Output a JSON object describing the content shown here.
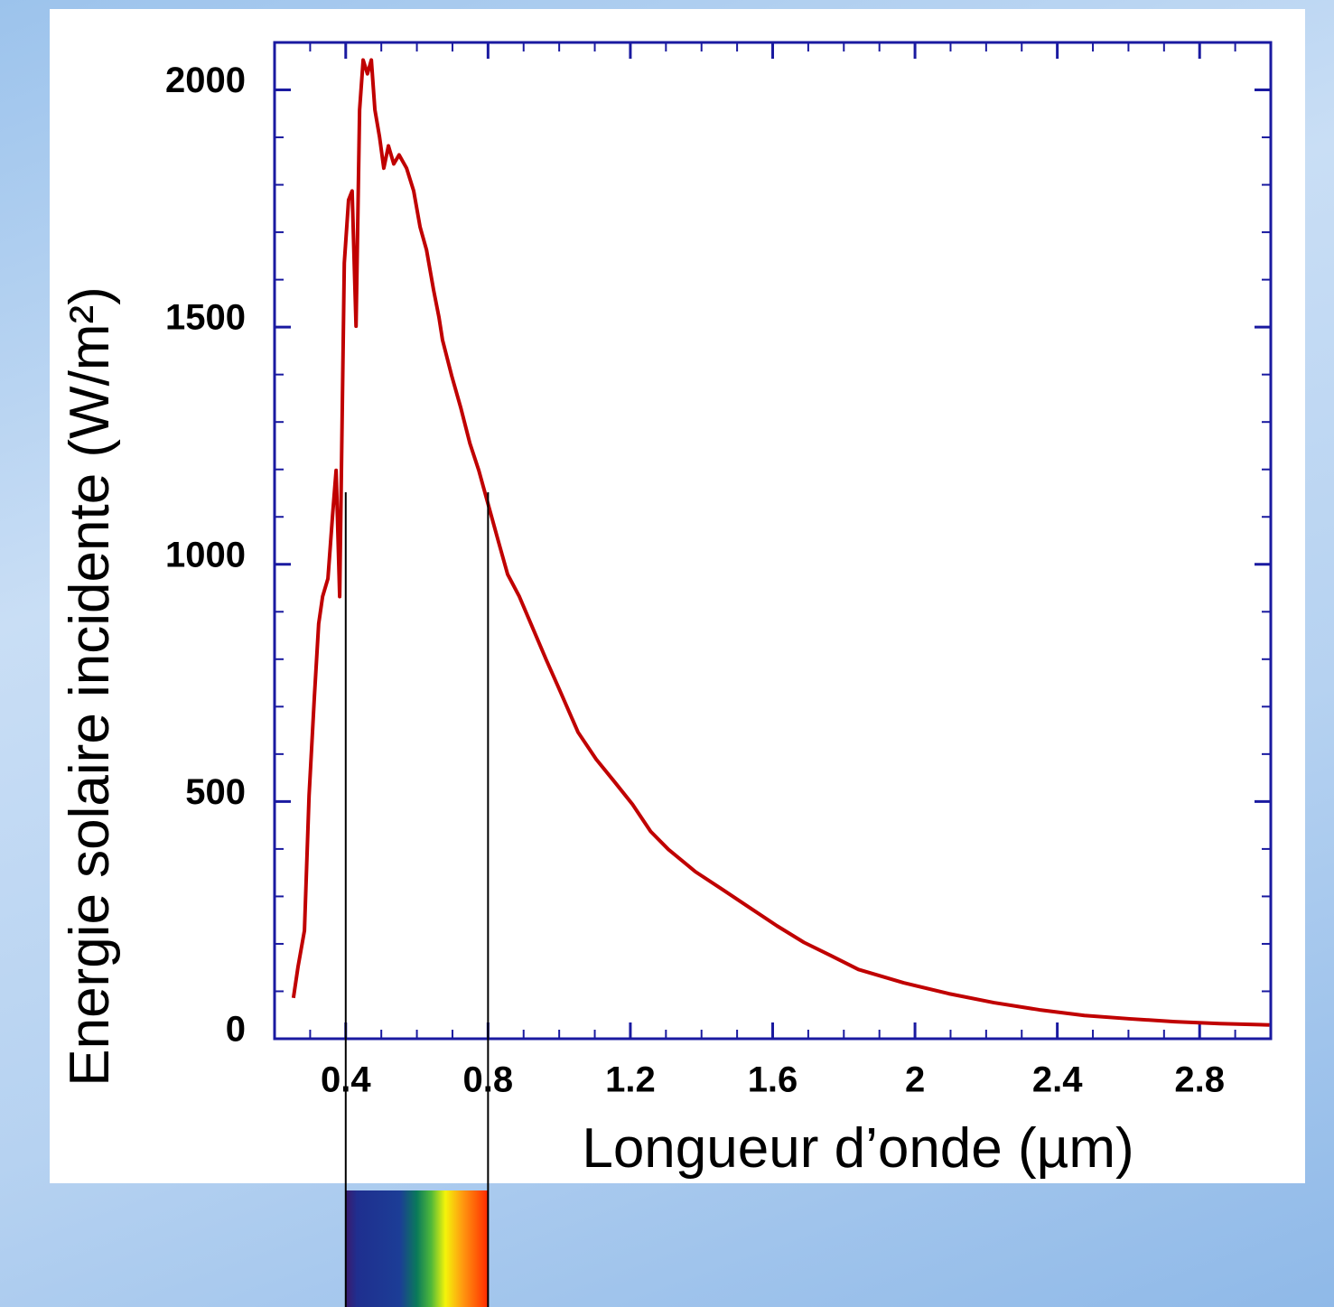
{
  "chart_data": {
    "type": "line",
    "x_label": "Longueur d’onde (µm)",
    "y_label": "Energie solaire incidente (W/m²)",
    "x": [
      0.253,
      0.266,
      0.284,
      0.297,
      0.312,
      0.324,
      0.335,
      0.35,
      0.363,
      0.373,
      0.383,
      0.396,
      0.408,
      0.418,
      0.429,
      0.439,
      0.449,
      0.461,
      0.472,
      0.482,
      0.495,
      0.507,
      0.52,
      0.535,
      0.55,
      0.571,
      0.591,
      0.609,
      0.627,
      0.647,
      0.662,
      0.672,
      0.698,
      0.723,
      0.749,
      0.774,
      0.802,
      0.83,
      0.855,
      0.888,
      0.926,
      0.964,
      1.003,
      1.053,
      1.104,
      1.155,
      1.206,
      1.257,
      1.307,
      1.383,
      1.46,
      1.536,
      1.612,
      1.688,
      1.764,
      1.841,
      1.968,
      2.095,
      2.222,
      2.349,
      2.476,
      2.603,
      2.73,
      2.857,
      2.996
    ],
    "series": [
      {
        "color": "#c00000",
        "values": [
          86,
          152,
          228,
          513,
          722,
          875,
          932,
          970,
          1103,
          1198,
          932,
          1635,
          1768,
          1787,
          1502,
          1958,
          2063,
          2034,
          2063,
          1958,
          1901,
          1835,
          1882,
          1844,
          1863,
          1835,
          1787,
          1711,
          1663,
          1578,
          1521,
          1473,
          1397,
          1331,
          1255,
          1198,
          1122,
          1046,
          979,
          932,
          865,
          798,
          732,
          646,
          589,
          542,
          494,
          437,
          399,
          352,
          314,
          276,
          238,
          203,
          175,
          146,
          118,
          95,
          76,
          61,
          49,
          42,
          36,
          32,
          29
        ]
      }
    ],
    "xlim": [
      0.2,
      3.0
    ],
    "ylim": [
      0,
      2100
    ],
    "xticks": [
      0.4,
      0.8,
      1.2,
      1.6,
      2,
      2.4,
      2.8
    ],
    "yticks": [
      0,
      500,
      1000,
      1500,
      2000
    ],
    "xminorticks": [
      0.3,
      0.5,
      0.6,
      0.7,
      0.9,
      1,
      1.1,
      1.3,
      1.4,
      1.5,
      1.7,
      1.8,
      1.9,
      2.1,
      2.2,
      2.3,
      2.5,
      2.6,
      2.7,
      2.9
    ],
    "yminorticks": [
      100,
      200,
      300,
      400,
      600,
      700,
      800,
      900,
      1100,
      1200,
      1300,
      1400,
      1600,
      1700,
      1800,
      1900
    ],
    "frame_color": "#1a1aa0"
  }
}
